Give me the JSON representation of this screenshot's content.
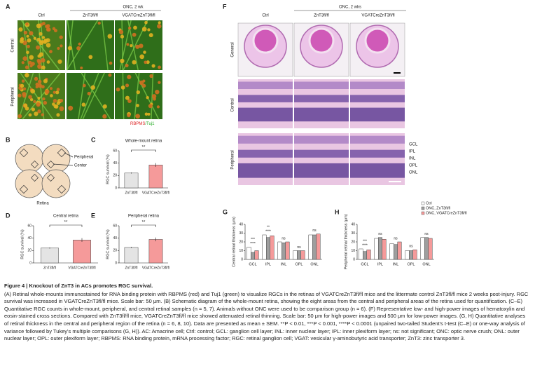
{
  "panel_a": {
    "letter": "A",
    "group_label": "ONC, 2 wk",
    "columns": [
      "Ctrl",
      "ZnT3fl/fl",
      "VGATCreZnT3fl/fl"
    ],
    "rows": [
      "Central",
      "Peripheral"
    ],
    "stain": [
      "RBPMS",
      "/Tuj1"
    ]
  },
  "panel_b": {
    "letter": "B",
    "labels": [
      "Peripheral",
      "Center"
    ],
    "caption": "Retina"
  },
  "panel_c": {
    "letter": "C",
    "chart": {
      "type": "bar",
      "title": "Whole-mount retina",
      "y_label": "RGC survival (%)",
      "categories": [
        "ZnT3fl/fl",
        "VGATCreZnT3fl/fl"
      ],
      "values": [
        24,
        37
      ],
      "errors": [
        1,
        3
      ],
      "colors": [
        "#e4e4e4",
        "#f59a9a"
      ],
      "ylim": [
        0,
        60
      ],
      "yticks": [
        0,
        20,
        40,
        60
      ],
      "significance": "**"
    }
  },
  "panel_d": {
    "letter": "D",
    "chart": {
      "type": "bar",
      "title": "Central retina",
      "y_label": "RGC survival (%)",
      "categories": [
        "ZnT3fl/fl",
        "VGATCreZnT3fl/fl"
      ],
      "values": [
        24,
        37
      ],
      "errors": [
        1,
        3
      ],
      "colors": [
        "#e4e4e4",
        "#f59a9a"
      ],
      "ylim": [
        0,
        60
      ],
      "yticks": [
        0,
        20,
        40,
        60
      ],
      "significance": "**"
    }
  },
  "panel_e": {
    "letter": "E",
    "chart": {
      "type": "bar",
      "title": "Peripheral retina",
      "y_label": "RGC survival (%)",
      "categories": [
        "ZnT3fl/fl",
        "VGATCreZnT3fl/fl"
      ],
      "values": [
        25,
        38
      ],
      "errors": [
        1,
        3
      ],
      "colors": [
        "#e4e4e4",
        "#f59a9a"
      ],
      "ylim": [
        0,
        60
      ],
      "yticks": [
        0,
        20,
        40,
        60
      ],
      "significance": "**"
    }
  },
  "panel_f": {
    "letter": "F",
    "group_label": "ONC, 2 wks",
    "columns": [
      "Ctrl",
      "ZnT3fl/fl",
      "VGATCreZnT3fl/fl"
    ],
    "rows": [
      "General",
      "Central",
      "Peripheral"
    ],
    "layers": [
      "GCL",
      "IPL",
      "INL",
      "OPL",
      "ONL"
    ]
  },
  "panel_g": {
    "letter": "G",
    "chart": {
      "type": "grouped_bar",
      "y_label": "Central retinal thickness (μm)",
      "categories": [
        "GCL",
        "IPL",
        "INL",
        "OPL",
        "ONL"
      ],
      "series": [
        {
          "color": "#ffffff",
          "values": [
            14,
            28,
            20,
            10,
            28
          ]
        },
        {
          "color": "#9e9e9e",
          "values": [
            8,
            25,
            19,
            10,
            28
          ]
        },
        {
          "color": "#f59a9a",
          "values": [
            10,
            27,
            20,
            10,
            29
          ]
        }
      ],
      "ylim": [
        0,
        40
      ],
      "yticks": [
        0,
        10,
        20,
        30,
        40
      ],
      "significance": [
        [
          "****",
          "***"
        ],
        [
          "****",
          "**"
        ],
        [
          "ns"
        ],
        [
          "ns"
        ],
        [
          "ns"
        ]
      ]
    }
  },
  "panel_h": {
    "letter": "H",
    "chart": {
      "type": "grouped_bar",
      "y_label": "Peripheral retinal thickness (μm)",
      "categories": [
        "GCL",
        "IPL",
        "INL",
        "OPL",
        "ONL"
      ],
      "series": [
        {
          "name": "Ctrl",
          "color": "#ffffff",
          "values": [
            12,
            24,
            18,
            10,
            25
          ]
        },
        {
          "name": "ONC, ZnT3fl/fl",
          "color": "#9e9e9e",
          "values": [
            9,
            25,
            17,
            10,
            25
          ]
        },
        {
          "name": "ONC, VGATCreZnT3fl/fl",
          "color": "#f59a9a",
          "values": [
            11,
            23,
            20,
            11,
            24
          ]
        }
      ],
      "ylim": [
        0,
        40
      ],
      "yticks": [
        0,
        10,
        20,
        30,
        40
      ],
      "significance": [
        [
          "****",
          "***"
        ],
        [
          "ns"
        ],
        [
          "ns"
        ],
        [
          "ns"
        ],
        [
          "ns"
        ]
      ]
    }
  },
  "caption": {
    "title": "Figure 4 | Knockout of ZnT3 in ACs promotes RGC survival.",
    "body": "(A) Retinal whole-mounts immunostained for RNA binding protein with RBPMS (red) and Tuj1 (green) to visualize RGCs in the retinas of VGATCreZnT3fl/fl mice and the littermate control ZnT3fl/fl mice 2 weeks post-injury. RGC survival was increased in VGATCreZnT3fl/fl mice. Scale bar: 50 μm. (B) Schematic diagram of the whole-mount retina, showing the eight areas from the central and peripheral areas of the retina used for quantification. (C–E) Quantitative RGC counts in whole-mount, peripheral, and central retinal samples (n = 5, 7). Animals without ONC were used to be comparison group (n = 6). (F) Representative low- and high-power images of hematoxylin and eosin-stained cross sections. Compared with ZnT3fl/fl mice, VGATCreZnT3fl/fl mice showed attenuated retinal thinning. Scale bar: 50 μm for high-power images and 500 μm for low-power images. (G, H) Quantitative analyses of retinal thickness in the central and peripheral region of the retina (n = 6, 8, 10). Data are presented as mean ± SEM. **P < 0.01, ***P < 0.001, ****P < 0.0001 (unpaired two-tailed Student's t-test (C–E) or one-way analysis of variance followed by Tukey's multiple comparisons (G, H)). AC: Amacrine cell; Ctrl: control; GCL: ganglion cell layer; INL: inner nuclear layer; IPL: inner plexiform layer; ns: not significant; ONC: optic nerve crush; ONL: outer nuclear layer; OPL: outer plexiform layer; RBPMS: RNA binding protein, mRNA processing factor; RGC: retinal ganglion cell; VGAT: vesicular γ-aminobutyric acid transporter; ZnT3: zinc transporter 3."
  }
}
